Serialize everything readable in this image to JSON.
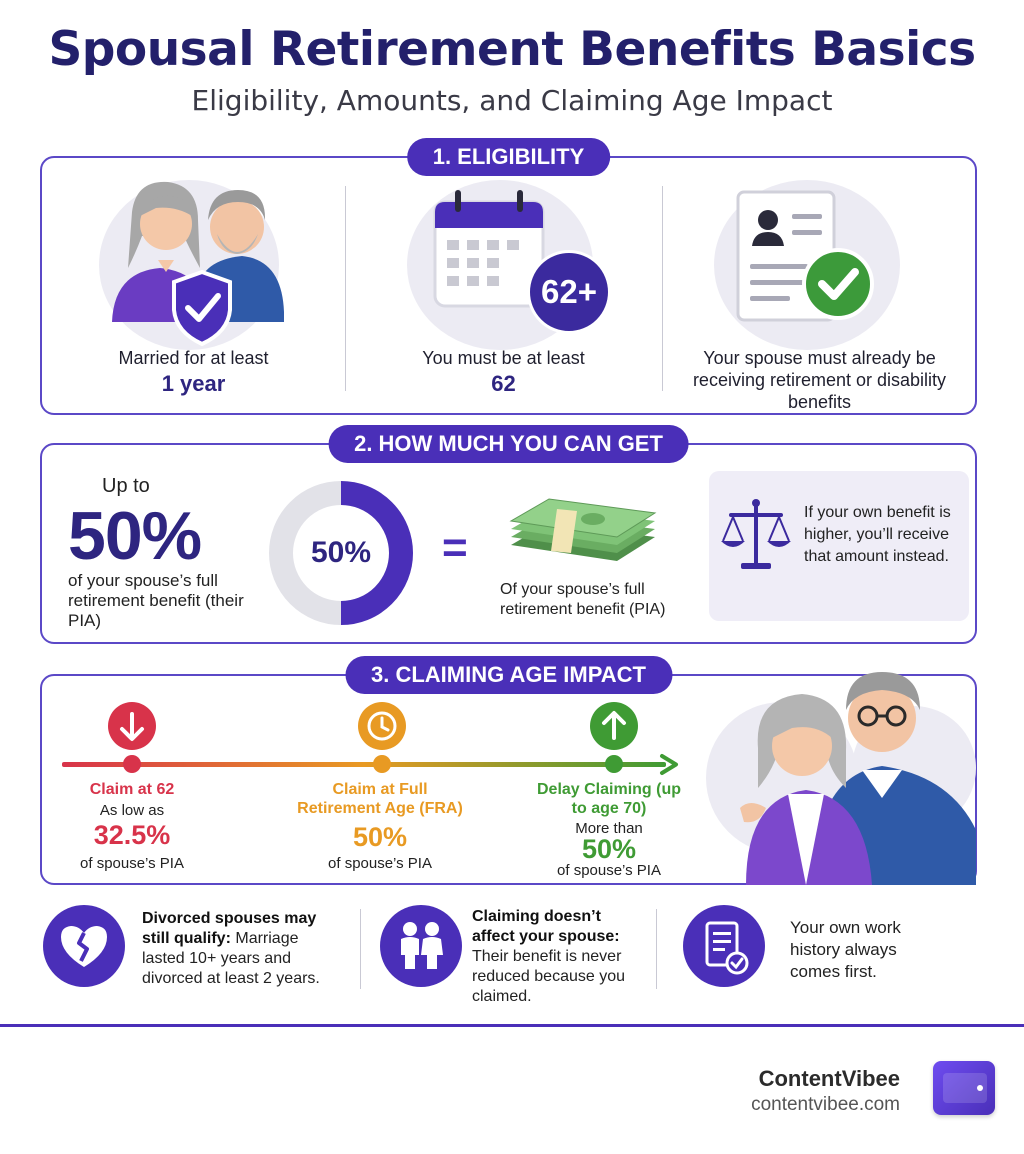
{
  "header": {
    "title": "Spousal Retirement Benefits Basics",
    "subtitle": "Eligibility, Amounts, and Claiming Age Impact"
  },
  "eligibility": {
    "pill": "1. ELIGIBILITY",
    "items": [
      {
        "text": "Married for at least",
        "highlight": "1 year",
        "icon": "couple-shield-icon"
      },
      {
        "text": "You must be at least",
        "highlight": "62",
        "badge": "62+",
        "icon": "calendar-icon"
      },
      {
        "text": "Your spouse must already be receiving retirement or disability benefits",
        "icon": "document-check-icon"
      }
    ]
  },
  "amount": {
    "pill": "2. HOW MUCH YOU CAN GET",
    "up_to": "Up to",
    "big": "50%",
    "desc": "of your spouse’s full retirement benefit (their PIA)",
    "donut_label": "50%",
    "donut_fraction": 0.5,
    "equals": "=",
    "money_desc": "Of your spouse’s full retirement benefit (PIA)",
    "note": "If your own benefit is higher, you’ll receive that amount instead.",
    "note_icon": "scale-icon",
    "money_icon": "cash-stack-icon"
  },
  "claiming": {
    "pill": "3. CLAIMING AGE IMPACT",
    "stages": [
      {
        "title": "Claim at 62",
        "sub": "As low as",
        "value": "32.5%",
        "pia": "of spouse’s PIA",
        "color": "#d8334a",
        "icon": "arrow-down-icon"
      },
      {
        "title": "Claim at Full Retirement Age (FRA)",
        "sub": "",
        "value": "50%",
        "pia": "of spouse’s PIA",
        "color": "#e89a23",
        "icon": "clock-icon"
      },
      {
        "title": "Delay Claiming (up to age 70)",
        "sub": "More than",
        "value": "50%",
        "pia": "of spouse’s PIA",
        "color": "#3f9b34",
        "icon": "arrow-up-icon"
      }
    ]
  },
  "tips": [
    {
      "bold": "Divorced spouses may still qualify:",
      "text": "Marriage lasted 10+ years and divorced at least 2 years.",
      "icon": "broken-heart-icon"
    },
    {
      "bold": "Claiming doesn’t affect your spouse:",
      "text": "Their benefit is never reduced because you claimed.",
      "icon": "people-icon"
    },
    {
      "bold": "",
      "text": "Your own work history always comes first.",
      "icon": "document-check-icon"
    }
  ],
  "footer": {
    "brand": "ContentVibee",
    "url": "contentvibee.com"
  }
}
